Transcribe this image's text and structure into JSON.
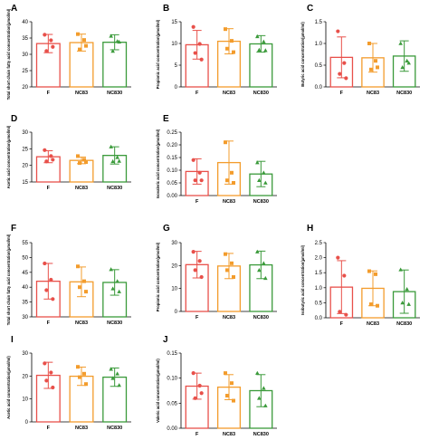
{
  "chart_data": [
    {
      "panel": "A",
      "type": "bar",
      "categories": [
        "F",
        "NC83",
        "NC830"
      ],
      "colors": [
        "#e8504a",
        "#f39c2c",
        "#3a9a3a"
      ],
      "ylabel": "Total short chain fatty acid concentration(µmol/ml)",
      "ylim": [
        20,
        40
      ],
      "yticks": [
        "20",
        "25",
        "30",
        "35",
        "40"
      ],
      "values": [
        33.3,
        33.6,
        33.7
      ],
      "errors": [
        2.8,
        2.6,
        2.3
      ],
      "points": [
        [
          36.0,
          34.3,
          31.0,
          32.3
        ],
        [
          36.2,
          34.4,
          31.5,
          32.6
        ],
        [
          35.6,
          34.0,
          31.0,
          33.8
        ]
      ]
    },
    {
      "panel": "B",
      "type": "bar",
      "categories": [
        "F",
        "NC83",
        "NC830"
      ],
      "colors": [
        "#e8504a",
        "#f39c2c",
        "#3a9a3a"
      ],
      "ylabel": "Propionic acid concentration(µmol/ml)",
      "ylim": [
        0,
        15
      ],
      "yticks": [
        "0",
        "5",
        "10",
        "15"
      ],
      "values": [
        9.7,
        10.5,
        9.9
      ],
      "errors": [
        3.3,
        2.9,
        1.9
      ],
      "points": [
        [
          13.8,
          9.9,
          7.8,
          6.3
        ],
        [
          13.3,
          10.6,
          8.8,
          8.0
        ],
        [
          11.6,
          10.4,
          8.5,
          8.4
        ]
      ]
    },
    {
      "panel": "C",
      "type": "bar",
      "categories": [
        "F",
        "NC83",
        "NC830"
      ],
      "colors": [
        "#e8504a",
        "#f39c2c",
        "#3a9a3a"
      ],
      "ylabel": "Butyric acid concentration(µmol/ml)",
      "ylim": [
        0,
        1.5
      ],
      "yticks": [
        "0.0",
        "0.5",
        "1.0",
        "1.5"
      ],
      "values": [
        0.68,
        0.67,
        0.71
      ],
      "errors": [
        0.47,
        0.33,
        0.35
      ],
      "points": [
        [
          1.28,
          0.55,
          0.3,
          0.2
        ],
        [
          1.0,
          0.6,
          0.4,
          0.45
        ],
        [
          1.0,
          0.6,
          0.45,
          0.55
        ]
      ]
    },
    {
      "panel": "D",
      "type": "bar",
      "categories": [
        "F",
        "NC83",
        "NC830"
      ],
      "colors": [
        "#e8504a",
        "#f39c2c",
        "#3a9a3a"
      ],
      "ylabel": "Acetic acid concentration(µmol/ml)",
      "ylim": [
        15,
        30
      ],
      "yticks": [
        "15",
        "20",
        "25",
        "30"
      ],
      "values": [
        22.6,
        21.5,
        23.0
      ],
      "errors": [
        1.8,
        1.0,
        2.6
      ],
      "points": [
        [
          24.6,
          22.8,
          21.2,
          21.7
        ],
        [
          22.8,
          21.7,
          20.7,
          21.0
        ],
        [
          25.6,
          22.4,
          21.2,
          21.3
        ]
      ]
    },
    {
      "panel": "E",
      "type": "bar",
      "categories": [
        "F",
        "NC83",
        "NC830"
      ],
      "colors": [
        "#e8504a",
        "#f39c2c",
        "#3a9a3a"
      ],
      "ylabel": "Isovaleric acid concentration(µmol/ml)",
      "ylim": [
        0,
        0.25
      ],
      "yticks": [
        "0.00",
        "0.05",
        "0.10",
        "0.15",
        "0.20",
        "0.25"
      ],
      "values": [
        0.095,
        0.13,
        0.085
      ],
      "errors": [
        0.05,
        0.085,
        0.05
      ],
      "points": [
        [
          0.14,
          0.09,
          0.06,
          0.06
        ],
        [
          0.21,
          0.09,
          0.06,
          0.05
        ],
        [
          0.13,
          0.09,
          0.06,
          0.05
        ]
      ]
    },
    {
      "panel": "F",
      "type": "bar",
      "categories": [
        "F",
        "NC83",
        "NC830"
      ],
      "colors": [
        "#e8504a",
        "#f39c2c",
        "#3a9a3a"
      ],
      "ylabel": "Total short chain fatty acid concentration(µmol/ml)",
      "ylim": [
        30,
        55
      ],
      "yticks": [
        "30",
        "35",
        "40",
        "45",
        "50",
        "55"
      ],
      "values": [
        42.0,
        41.8,
        41.6
      ],
      "errors": [
        6.0,
        5.0,
        4.3
      ],
      "points": [
        [
          48.0,
          42.5,
          39.0,
          36.0
        ],
        [
          47.0,
          42.0,
          40.0,
          38.5
        ],
        [
          46.0,
          42.0,
          39.5,
          38.5
        ]
      ]
    },
    {
      "panel": "G",
      "type": "bar",
      "categories": [
        "F",
        "NC83",
        "NC830"
      ],
      "colors": [
        "#e8504a",
        "#f39c2c",
        "#3a9a3a"
      ],
      "ylabel": "Propionic acid concentration(µmol/ml)",
      "ylim": [
        0,
        30
      ],
      "yticks": [
        "0",
        "10",
        "20",
        "30"
      ],
      "values": [
        20.4,
        19.8,
        20.3
      ],
      "errors": [
        5.8,
        5.5,
        6.0
      ],
      "points": [
        [
          26.0,
          22.0,
          18.0,
          15.0
        ],
        [
          25.0,
          21.0,
          18.0,
          15.0
        ],
        [
          26.0,
          21.0,
          18.0,
          14.5
        ]
      ]
    },
    {
      "panel": "H",
      "type": "bar",
      "categories": [
        "F",
        "NC83",
        "NC830"
      ],
      "colors": [
        "#e8504a",
        "#f39c2c",
        "#3a9a3a"
      ],
      "ylabel": "Isobutyric acid concentration(µmol/ml)",
      "ylim": [
        0,
        2.5
      ],
      "yticks": [
        "0.0",
        "0.5",
        "1.0",
        "1.5",
        "2.0",
        "2.5"
      ],
      "values": [
        1.02,
        0.98,
        0.87
      ],
      "errors": [
        0.88,
        0.58,
        0.72
      ],
      "points": [
        [
          2.0,
          1.4,
          0.2,
          0.1
        ],
        [
          1.55,
          1.45,
          0.45,
          0.4
        ],
        [
          1.6,
          0.95,
          0.5,
          0.45
        ]
      ]
    },
    {
      "panel": "I",
      "type": "bar",
      "categories": [
        "F",
        "NC83",
        "NC830"
      ],
      "colors": [
        "#e8504a",
        "#f39c2c",
        "#3a9a3a"
      ],
      "ylabel": "Acetic acid concentration(µmol/ml)",
      "ylim": [
        0,
        30
      ],
      "yticks": [
        "0",
        "10",
        "20",
        "30"
      ],
      "values": [
        20.3,
        19.9,
        19.5
      ],
      "errors": [
        5.7,
        4.0,
        4.0
      ],
      "points": [
        [
          25.5,
          21.5,
          18.0,
          15.0
        ],
        [
          24.0,
          21.0,
          19.5,
          16.5
        ],
        [
          23.0,
          21.0,
          19.0,
          16.0
        ]
      ]
    },
    {
      "panel": "J",
      "type": "bar",
      "categories": [
        "F",
        "NC83",
        "NC830"
      ],
      "colors": [
        "#e8504a",
        "#f39c2c",
        "#3a9a3a"
      ],
      "ylabel": "Valeric acid concentration(µmol/ml)",
      "ylim": [
        0,
        0.15
      ],
      "yticks": [
        "0.00",
        "0.05",
        "0.10",
        "0.15"
      ],
      "values": [
        0.084,
        0.082,
        0.075
      ],
      "errors": [
        0.026,
        0.025,
        0.032
      ],
      "points": [
        [
          0.11,
          0.085,
          0.06,
          0.07
        ],
        [
          0.11,
          0.09,
          0.065,
          0.055
        ],
        [
          0.11,
          0.08,
          0.06,
          0.045
        ]
      ]
    }
  ]
}
